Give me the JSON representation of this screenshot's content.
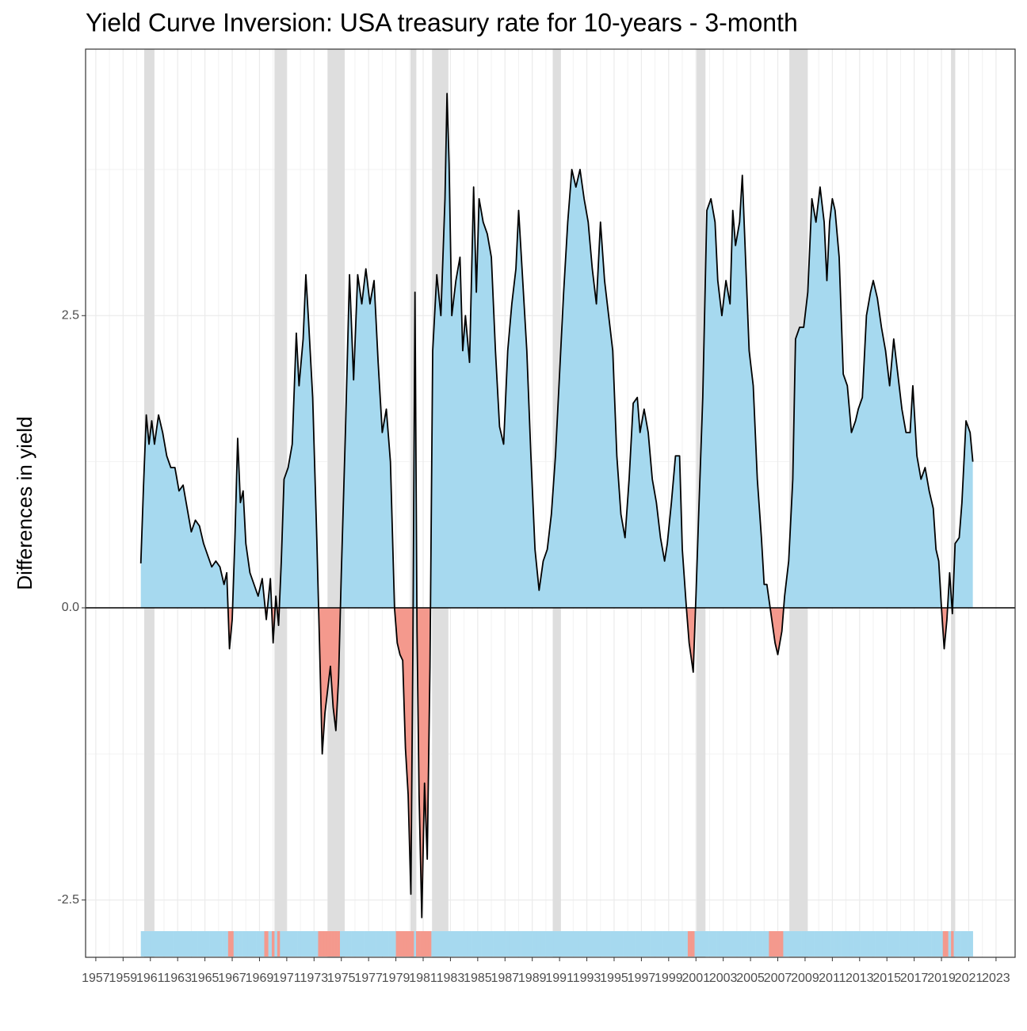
{
  "chart_data": {
    "type": "area",
    "title": "Yield Curve Inversion: USA treasury rate for 10-years - 3-month",
    "y_label": "Differences in yield",
    "x": [
      1960.3,
      1960.5,
      1960.7,
      1960.9,
      1961.1,
      1961.3,
      1961.6,
      1961.9,
      1962.2,
      1962.5,
      1962.8,
      1963.1,
      1963.4,
      1963.7,
      1964.0,
      1964.3,
      1964.6,
      1964.9,
      1965.2,
      1965.5,
      1965.8,
      1966.1,
      1966.4,
      1966.6,
      1966.8,
      1967.0,
      1967.2,
      1967.4,
      1967.6,
      1967.8,
      1968.0,
      1968.3,
      1968.6,
      1968.9,
      1969.2,
      1969.5,
      1969.8,
      1970.0,
      1970.2,
      1970.4,
      1970.6,
      1970.8,
      1971.1,
      1971.4,
      1971.7,
      1971.9,
      1972.2,
      1972.4,
      1972.6,
      1972.9,
      1973.2,
      1973.4,
      1973.6,
      1973.8,
      1974.0,
      1974.2,
      1974.4,
      1974.6,
      1974.8,
      1975.0,
      1975.3,
      1975.6,
      1975.9,
      1976.2,
      1976.5,
      1976.8,
      1977.1,
      1977.4,
      1977.7,
      1978.0,
      1978.3,
      1978.6,
      1978.9,
      1979.1,
      1979.3,
      1979.5,
      1979.7,
      1979.9,
      1980.1,
      1980.25,
      1980.4,
      1980.55,
      1980.7,
      1980.9,
      1981.1,
      1981.3,
      1981.5,
      1981.7,
      1982.0,
      1982.3,
      1982.6,
      1982.75,
      1982.9,
      1983.1,
      1983.4,
      1983.7,
      1983.9,
      1984.1,
      1984.4,
      1984.7,
      1984.9,
      1985.1,
      1985.4,
      1985.7,
      1986.0,
      1986.3,
      1986.6,
      1986.9,
      1987.2,
      1987.5,
      1987.8,
      1988.0,
      1988.3,
      1988.6,
      1988.9,
      1989.2,
      1989.5,
      1989.8,
      1990.1,
      1990.4,
      1990.7,
      1991.0,
      1991.3,
      1991.6,
      1991.9,
      1992.2,
      1992.5,
      1992.8,
      1993.1,
      1993.4,
      1993.7,
      1994.0,
      1994.3,
      1994.6,
      1994.9,
      1995.2,
      1995.5,
      1995.8,
      1996.1,
      1996.4,
      1996.7,
      1996.9,
      1997.2,
      1997.5,
      1997.8,
      1998.1,
      1998.4,
      1998.7,
      1998.9,
      1999.2,
      1999.5,
      1999.8,
      2000.0,
      2000.3,
      2000.5,
      2000.8,
      2001.0,
      2001.2,
      2001.5,
      2001.8,
      2002.1,
      2002.4,
      2002.6,
      2002.9,
      2003.2,
      2003.5,
      2003.7,
      2003.9,
      2004.2,
      2004.4,
      2004.7,
      2004.9,
      2005.2,
      2005.5,
      2005.8,
      2006.0,
      2006.2,
      2006.5,
      2006.8,
      2007.0,
      2007.3,
      2007.5,
      2007.8,
      2008.1,
      2008.3,
      2008.6,
      2008.9,
      2009.2,
      2009.5,
      2009.8,
      2010.1,
      2010.4,
      2010.6,
      2010.8,
      2011.0,
      2011.2,
      2011.5,
      2011.8,
      2012.1,
      2012.4,
      2012.7,
      2012.9,
      2013.2,
      2013.5,
      2013.8,
      2014.0,
      2014.3,
      2014.6,
      2014.9,
      2015.2,
      2015.5,
      2015.8,
      2016.1,
      2016.4,
      2016.7,
      2016.9,
      2017.2,
      2017.5,
      2017.8,
      2018.1,
      2018.4,
      2018.6,
      2018.8,
      2019.0,
      2019.2,
      2019.4,
      2019.6,
      2019.8,
      2020.0,
      2020.3,
      2020.5,
      2020.8,
      2021.1,
      2021.3
    ],
    "values": [
      0.38,
      1.05,
      1.65,
      1.4,
      1.6,
      1.4,
      1.65,
      1.5,
      1.3,
      1.2,
      1.2,
      1.0,
      1.05,
      0.85,
      0.65,
      0.75,
      0.7,
      0.55,
      0.45,
      0.35,
      0.4,
      0.35,
      0.2,
      0.3,
      -0.35,
      -0.1,
      0.6,
      1.45,
      0.9,
      1.0,
      0.55,
      0.3,
      0.2,
      0.1,
      0.25,
      -0.1,
      0.25,
      -0.3,
      0.1,
      -0.15,
      0.4,
      1.1,
      1.2,
      1.4,
      2.35,
      1.9,
      2.3,
      2.85,
      2.45,
      1.8,
      0.6,
      -0.3,
      -1.25,
      -0.9,
      -0.7,
      -0.5,
      -0.85,
      -1.05,
      -0.6,
      0.3,
      1.5,
      2.85,
      1.95,
      2.85,
      2.6,
      2.9,
      2.6,
      2.8,
      2.1,
      1.5,
      1.7,
      1.25,
      0.0,
      -0.3,
      -0.4,
      -0.45,
      -1.2,
      -1.6,
      -2.45,
      -0.3,
      2.7,
      -0.2,
      -1.6,
      -2.65,
      -1.5,
      -2.15,
      -0.5,
      2.2,
      2.85,
      2.5,
      3.5,
      4.4,
      3.8,
      2.5,
      2.8,
      3.0,
      2.2,
      2.5,
      2.1,
      3.6,
      2.7,
      3.5,
      3.3,
      3.2,
      3.0,
      2.2,
      1.55,
      1.4,
      2.2,
      2.6,
      2.9,
      3.4,
      2.8,
      2.2,
      1.3,
      0.5,
      0.15,
      0.4,
      0.5,
      0.8,
      1.3,
      2.0,
      2.7,
      3.3,
      3.75,
      3.6,
      3.75,
      3.5,
      3.3,
      2.9,
      2.6,
      3.3,
      2.8,
      2.5,
      2.2,
      1.3,
      0.8,
      0.6,
      1.1,
      1.75,
      1.8,
      1.5,
      1.7,
      1.5,
      1.1,
      0.9,
      0.6,
      0.4,
      0.55,
      0.9,
      1.3,
      1.3,
      0.5,
      0.0,
      -0.3,
      -0.55,
      0.1,
      0.8,
      1.8,
      3.4,
      3.5,
      3.3,
      2.8,
      2.5,
      2.8,
      2.6,
      3.4,
      3.1,
      3.3,
      3.7,
      2.8,
      2.2,
      1.9,
      1.1,
      0.6,
      0.2,
      0.2,
      -0.05,
      -0.3,
      -0.4,
      -0.2,
      0.1,
      0.4,
      1.1,
      2.3,
      2.4,
      2.4,
      2.7,
      3.5,
      3.3,
      3.6,
      3.3,
      2.8,
      3.3,
      3.5,
      3.4,
      3.0,
      2.0,
      1.9,
      1.5,
      1.6,
      1.7,
      1.8,
      2.5,
      2.7,
      2.8,
      2.65,
      2.4,
      2.2,
      1.9,
      2.3,
      2.0,
      1.7,
      1.5,
      1.5,
      1.9,
      1.3,
      1.1,
      1.2,
      1.0,
      0.85,
      0.5,
      0.4,
      0.0,
      -0.35,
      -0.1,
      0.3,
      -0.05,
      0.55,
      0.6,
      0.9,
      1.6,
      1.5,
      1.25
    ],
    "positive_color": "#a6d9ef",
    "negative_color": "#f4998d",
    "line_color": "#000000",
    "recessions": [
      [
        1960.55,
        1961.3
      ],
      [
        1970.1,
        1971.0
      ],
      [
        1974.0,
        1975.25
      ],
      [
        1980.07,
        1980.5
      ],
      [
        1981.65,
        1982.85
      ],
      [
        1990.5,
        1991.1
      ],
      [
        2001.05,
        2001.7
      ],
      [
        2007.85,
        2009.2
      ],
      [
        2019.7,
        2020.0
      ]
    ],
    "recession_color": "#dedede",
    "hline": 0,
    "xlim": [
      1956.25,
      2024.4
    ],
    "xticks": [
      1957,
      1959,
      1961,
      1963,
      1965,
      1967,
      1969,
      1971,
      1973,
      1975,
      1977,
      1979,
      1981,
      1983,
      1985,
      1987,
      1989,
      1991,
      1993,
      1995,
      1997,
      1999,
      2001,
      2003,
      2005,
      2007,
      2009,
      2011,
      2013,
      2015,
      2017,
      2019,
      2021,
      2023
    ],
    "ylim": [
      -2.99,
      4.78
    ],
    "yticks": [
      {
        "value": -2.5,
        "label": "-2.5"
      },
      {
        "value": 0,
        "label": "0.0"
      },
      {
        "value": 2.5,
        "label": "2.5"
      }
    ],
    "grid": true
  }
}
